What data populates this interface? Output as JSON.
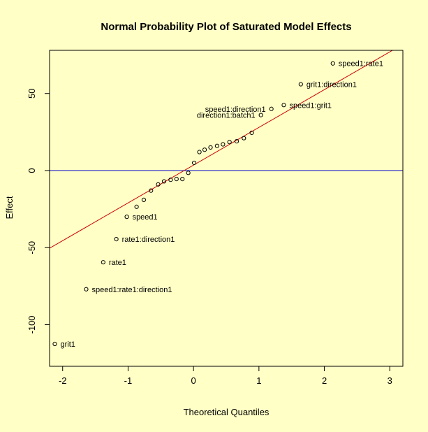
{
  "chart_data": {
    "type": "scatter",
    "title": "Normal Probability Plot of Saturated Model Effects",
    "xlabel": "Theoretical Quantiles",
    "ylabel": "Effect",
    "xlim": [
      -2.2,
      3.2
    ],
    "ylim": [
      -127,
      78
    ],
    "x_ticks": [
      -2,
      -1,
      0,
      1,
      2,
      3
    ],
    "y_ticks": [
      -100,
      -50,
      0,
      50
    ],
    "grid": false,
    "colors": {
      "background": "#ffffc6",
      "axis": "#000000",
      "points": "#000000",
      "reference_line": "#cc0000",
      "zero_line": "#0000cc"
    },
    "reference_line": {
      "slope": 24.5,
      "intercept": 3.5
    },
    "zero_line": {
      "y": 0
    },
    "points": [
      {
        "x": -2.12,
        "y": -112.5,
        "label": "grit1"
      },
      {
        "x": -1.64,
        "y": -77,
        "label": "speed1:rate1:direction1"
      },
      {
        "x": -1.38,
        "y": -59.5,
        "label": "rate1"
      },
      {
        "x": -1.18,
        "y": -44.5,
        "label": "rate1:direction1"
      },
      {
        "x": -1.02,
        "y": -30,
        "label": "speed1"
      },
      {
        "x": -0.87,
        "y": -23.5,
        "label": ""
      },
      {
        "x": -0.76,
        "y": -19,
        "label": ""
      },
      {
        "x": -0.65,
        "y": -13,
        "label": ""
      },
      {
        "x": -0.54,
        "y": -9,
        "label": ""
      },
      {
        "x": -0.45,
        "y": -7,
        "label": ""
      },
      {
        "x": -0.35,
        "y": -6,
        "label": ""
      },
      {
        "x": -0.26,
        "y": -5.5,
        "label": ""
      },
      {
        "x": -0.17,
        "y": -5.5,
        "label": ""
      },
      {
        "x": -0.08,
        "y": -1.5,
        "label": ""
      },
      {
        "x": 0.01,
        "y": 5,
        "label": ""
      },
      {
        "x": 0.09,
        "y": 12,
        "label": ""
      },
      {
        "x": 0.17,
        "y": 13.5,
        "label": ""
      },
      {
        "x": 0.26,
        "y": 15,
        "label": ""
      },
      {
        "x": 0.36,
        "y": 16,
        "label": ""
      },
      {
        "x": 0.45,
        "y": 17,
        "label": ""
      },
      {
        "x": 0.55,
        "y": 18.5,
        "label": ""
      },
      {
        "x": 0.66,
        "y": 19,
        "label": ""
      },
      {
        "x": 0.77,
        "y": 21,
        "label": ""
      },
      {
        "x": 0.89,
        "y": 24.5,
        "label": ""
      },
      {
        "x": 1.03,
        "y": 36,
        "label": "direction1:batch1"
      },
      {
        "x": 1.19,
        "y": 40,
        "label": "speed1:direction1"
      },
      {
        "x": 1.38,
        "y": 42.5,
        "label": "speed1:grit1"
      },
      {
        "x": 1.64,
        "y": 56,
        "label": "grit1:direction1"
      },
      {
        "x": 2.13,
        "y": 69.5,
        "label": "speed1:rate1"
      }
    ]
  }
}
